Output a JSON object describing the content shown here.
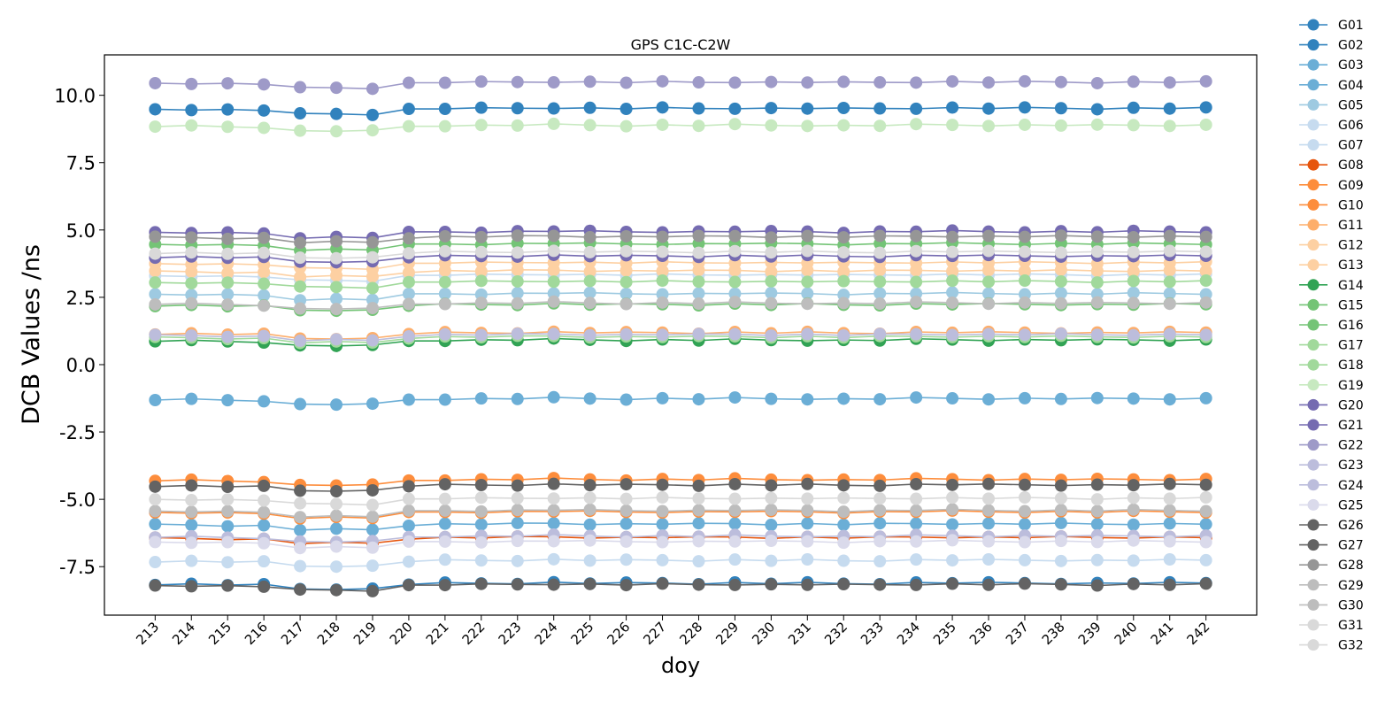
{
  "chart_data": {
    "type": "line",
    "title": "GPS C1C-C2W",
    "xlabel": "doy",
    "ylabel": "DCB Values /ns",
    "ylim": [
      -9.3,
      11.5
    ],
    "xlim": [
      211.6,
      243.4
    ],
    "yticks": [
      "-7.5",
      "-5.0",
      "-2.5",
      "0.0",
      "2.5",
      "5.0",
      "7.5",
      "10.0"
    ],
    "ytick_values": [
      -7.5,
      -5.0,
      -2.5,
      0.0,
      2.5,
      5.0,
      7.5,
      10.0
    ],
    "x": [
      213,
      214,
      215,
      216,
      217,
      218,
      219,
      220,
      221,
      222,
      223,
      224,
      225,
      226,
      227,
      228,
      229,
      230,
      231,
      232,
      233,
      234,
      235,
      236,
      237,
      238,
      239,
      240,
      241,
      242
    ],
    "legend_position": "outside-right",
    "grid": false,
    "value_model": "each series value = level + daily_offset[day index]",
    "daily_offset": [
      0,
      0,
      -0.02,
      -0.03,
      -0.18,
      -0.17,
      -0.18,
      0.0,
      0.03,
      0.03,
      0.04,
      0.06,
      0.04,
      0.03,
      0.04,
      0.03,
      0.05,
      0.03,
      0.04,
      0.02,
      0.03,
      0.05,
      0.05,
      0.04,
      0.04,
      0.04,
      0.03,
      0.04,
      0.04,
      0.04
    ],
    "series": [
      {
        "name": "G01",
        "color": "#3182bd",
        "level": -8.15
      },
      {
        "name": "G02",
        "color": "#3182bd",
        "level": 9.48
      },
      {
        "name": "G03",
        "color": "#6baed6",
        "level": -5.95
      },
      {
        "name": "G04",
        "color": "#6baed6",
        "level": -1.3
      },
      {
        "name": "G05",
        "color": "#9ecae1",
        "level": 2.6
      },
      {
        "name": "G06",
        "color": "#c6dbef",
        "level": -7.3
      },
      {
        "name": "G07",
        "color": "#c6dbef",
        "level": 3.3
      },
      {
        "name": "G08",
        "color": "#e6550d",
        "level": -6.45
      },
      {
        "name": "G09",
        "color": "#fd8d3c",
        "level": -4.3
      },
      {
        "name": "G10",
        "color": "#fd8d3c",
        "level": -5.5
      },
      {
        "name": "G11",
        "color": "#fdae6b",
        "level": 1.15
      },
      {
        "name": "G12",
        "color": "#fdd0a2",
        "level": 3.75
      },
      {
        "name": "G13",
        "color": "#fdd0a2",
        "level": 3.45
      },
      {
        "name": "G14",
        "color": "#31a354",
        "level": 0.88
      },
      {
        "name": "G15",
        "color": "#74c476",
        "level": 4.45
      },
      {
        "name": "G16",
        "color": "#74c476",
        "level": 2.2
      },
      {
        "name": "G17",
        "color": "#a1d99b",
        "level": 3.05
      },
      {
        "name": "G18",
        "color": "#a1d99b",
        "level": 1.0
      },
      {
        "name": "G19",
        "color": "#c7e9c0",
        "level": 8.85
      },
      {
        "name": "G20",
        "color": "#756bb1",
        "level": 4.9
      },
      {
        "name": "G21",
        "color": "#756bb1",
        "level": 4.0
      },
      {
        "name": "G22",
        "color": "#9e9ac8",
        "level": 10.45
      },
      {
        "name": "G23",
        "color": "#bcbddc",
        "level": 1.08
      },
      {
        "name": "G24",
        "color": "#bcbddc",
        "level": -6.4
      },
      {
        "name": "G25",
        "color": "#dadaeb",
        "level": -6.6
      },
      {
        "name": "G26",
        "color": "#636363",
        "level": -4.5
      },
      {
        "name": "G27",
        "color": "#636363",
        "level": -8.2
      },
      {
        "name": "G28",
        "color": "#969696",
        "level": 4.72
      },
      {
        "name": "G29",
        "color": "#bdbdbd",
        "level": 2.25
      },
      {
        "name": "G30",
        "color": "#bdbdbd",
        "level": -5.45
      },
      {
        "name": "G31",
        "color": "#d9d9d9",
        "level": 4.15
      },
      {
        "name": "G32",
        "color": "#d9d9d9",
        "level": -5.0
      }
    ]
  }
}
